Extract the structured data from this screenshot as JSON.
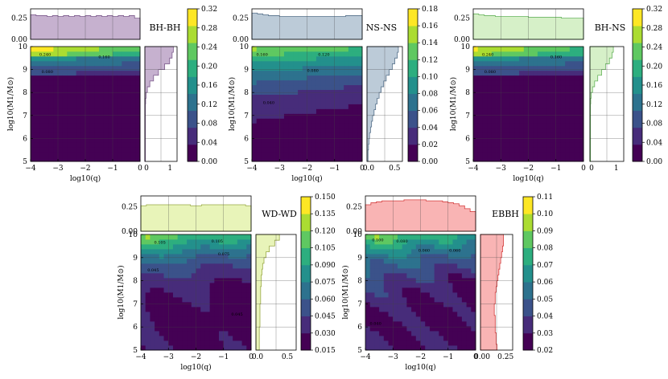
{
  "chart_data": [
    {
      "type": "heatmap",
      "title": "BH-BH",
      "fill": "#c6b1cf",
      "edge": "#7c5a8c",
      "xlabel": "log10(q)",
      "ylabel": "log10(M1/M⊙)",
      "x_ticks": [
        "−4",
        "−3",
        "−2",
        "−1",
        "0"
      ],
      "y_ticks": [
        "5",
        "6",
        "7",
        "8",
        "9",
        "10"
      ],
      "top_ticks": [
        "0.00",
        "0.25"
      ],
      "right_ticks": [
        "0",
        "1"
      ],
      "cbar_ticks": [
        "0.00",
        "0.04",
        "0.08",
        "0.12",
        "0.16",
        "0.20",
        "0.24",
        "0.28",
        "0.32"
      ],
      "contour_labels": [
        "0.240",
        "0.160",
        "0.080"
      ],
      "cbar_range": [
        0.0,
        0.32
      ],
      "top_hist": [
        0.29,
        0.28,
        0.28,
        0.27,
        0.28,
        0.27,
        0.28,
        0.27,
        0.28,
        0.27,
        0.28,
        0.27,
        0.28,
        0.27,
        0.28,
        0.27,
        0.28,
        0.27,
        0.28,
        0.25
      ],
      "right_hist": [
        0.02,
        0.02,
        0.02,
        0.02,
        0.02,
        0.02,
        0.02,
        0.02,
        0.02,
        0.02,
        0.03,
        0.05,
        0.1,
        0.2,
        0.35,
        0.55,
        0.8,
        1.0,
        1.1,
        1.15
      ]
    },
    {
      "type": "heatmap",
      "title": "NS-NS",
      "fill": "#bccbd8",
      "edge": "#56718b",
      "xlabel": "log10(q)",
      "ylabel": "log10(M1/M⊙)",
      "x_ticks": [
        "−4",
        "−3",
        "−2",
        "−1",
        "0"
      ],
      "y_ticks": [
        "5",
        "6",
        "7",
        "8",
        "9",
        "10"
      ],
      "top_ticks": [
        "0.00",
        "0.25"
      ],
      "right_ticks": [
        "0.0",
        "0.5"
      ],
      "cbar_ticks": [
        "0.00",
        "0.02",
        "0.04",
        "0.06",
        "0.08",
        "0.10",
        "0.12",
        "0.14",
        "0.16",
        "0.18"
      ],
      "contour_labels": [
        "0.160",
        "0.120",
        "0.080",
        "0.040"
      ],
      "cbar_range": [
        0.0,
        0.18
      ],
      "top_hist": [
        0.31,
        0.3,
        0.29,
        0.28,
        0.28,
        0.27,
        0.27,
        0.27,
        0.27,
        0.27,
        0.27,
        0.27,
        0.27,
        0.27,
        0.27,
        0.27,
        0.27,
        0.28,
        0.28,
        0.28
      ],
      "right_hist": [
        0.02,
        0.02,
        0.03,
        0.04,
        0.05,
        0.07,
        0.09,
        0.11,
        0.14,
        0.17,
        0.2,
        0.24,
        0.28,
        0.33,
        0.38,
        0.44,
        0.5,
        0.55,
        0.6,
        0.62
      ]
    },
    {
      "type": "heatmap",
      "title": "BH-NS",
      "fill": "#d6f0c8",
      "edge": "#66b35c",
      "xlabel": "log10(q)",
      "ylabel": "log10(M1/M⊙)",
      "x_ticks": [
        "−4",
        "−3",
        "−2",
        "−1",
        "0"
      ],
      "y_ticks": [
        "5",
        "6",
        "7",
        "8",
        "9",
        "10"
      ],
      "top_ticks": [
        "0.00",
        "0.25"
      ],
      "right_ticks": [
        "0",
        "1"
      ],
      "cbar_ticks": [
        "0.00",
        "0.04",
        "0.08",
        "0.12",
        "0.16",
        "0.20",
        "0.24",
        "0.28",
        "0.32"
      ],
      "contour_labels": [
        "0.240",
        "0.160",
        "0.080"
      ],
      "cbar_range": [
        0.0,
        0.32
      ],
      "top_hist": [
        0.3,
        0.29,
        0.28,
        0.28,
        0.27,
        0.27,
        0.27,
        0.27,
        0.27,
        0.27,
        0.26,
        0.26,
        0.26,
        0.26,
        0.26,
        0.26,
        0.25,
        0.25,
        0.25,
        0.25
      ],
      "right_hist": [
        0.02,
        0.02,
        0.02,
        0.02,
        0.02,
        0.02,
        0.02,
        0.02,
        0.02,
        0.02,
        0.03,
        0.05,
        0.1,
        0.18,
        0.3,
        0.45,
        0.6,
        0.75,
        0.85,
        0.9
      ]
    },
    {
      "type": "heatmap",
      "title": "WD-WD",
      "fill": "#e8f4b9",
      "edge": "#98a844",
      "xlabel": "log10(q)",
      "ylabel": "log10(M1/M⊙)",
      "x_ticks": [
        "−4",
        "−3",
        "−2",
        "−1",
        "0"
      ],
      "y_ticks": [
        "5",
        "6",
        "7",
        "8",
        "9",
        "10"
      ],
      "top_ticks": [
        "0.00",
        "0.25"
      ],
      "right_ticks": [
        "0.0",
        "0.5"
      ],
      "cbar_ticks": [
        "0.015",
        "0.030",
        "0.045",
        "0.060",
        "0.075",
        "0.090",
        "0.105",
        "0.120",
        "0.135",
        "0.150"
      ],
      "contour_labels": [
        "0.105",
        "0.105",
        "0.075",
        "0.045",
        "0.045"
      ],
      "cbar_range": [
        0.015,
        0.15
      ],
      "top_hist": [
        0.26,
        0.27,
        0.27,
        0.27,
        0.27,
        0.27,
        0.27,
        0.27,
        0.27,
        0.26,
        0.26,
        0.27,
        0.27,
        0.27,
        0.27,
        0.27,
        0.27,
        0.27,
        0.27,
        0.26
      ],
      "right_hist": [
        0.05,
        0.05,
        0.05,
        0.05,
        0.06,
        0.06,
        0.06,
        0.06,
        0.07,
        0.07,
        0.07,
        0.08,
        0.08,
        0.09,
        0.1,
        0.12,
        0.15,
        0.2,
        0.28,
        0.35
      ]
    },
    {
      "type": "heatmap",
      "title": "EBBH",
      "fill": "#f9b4b4",
      "edge": "#d43c3c",
      "xlabel": "log10(q)",
      "ylabel": "log10(M1/M⊙)",
      "x_ticks": [
        "−4",
        "−3",
        "−2",
        "−1",
        "0"
      ],
      "y_ticks": [
        "5",
        "6",
        "7",
        "8",
        "9",
        "10"
      ],
      "top_ticks": [
        "0.00",
        "0.25"
      ],
      "right_ticks": [
        "0.00",
        "0.25"
      ],
      "cbar_ticks": [
        "0.02",
        "0.03",
        "0.04",
        "0.05",
        "0.06",
        "0.07",
        "0.08",
        "0.09",
        "0.10",
        "0.11"
      ],
      "contour_labels": [
        "0.100",
        "0.080",
        "0.060",
        "0.060",
        "0.040"
      ],
      "cbar_range": [
        0.02,
        0.11
      ],
      "top_hist": [
        0.27,
        0.29,
        0.3,
        0.31,
        0.31,
        0.31,
        0.31,
        0.32,
        0.32,
        0.32,
        0.32,
        0.31,
        0.31,
        0.31,
        0.3,
        0.29,
        0.28,
        0.26,
        0.23,
        0.2
      ],
      "right_hist": [
        0.18,
        0.17,
        0.17,
        0.16,
        0.16,
        0.16,
        0.15,
        0.15,
        0.16,
        0.16,
        0.17,
        0.18,
        0.19,
        0.2,
        0.21,
        0.22,
        0.23,
        0.24,
        0.25,
        0.25
      ]
    }
  ]
}
